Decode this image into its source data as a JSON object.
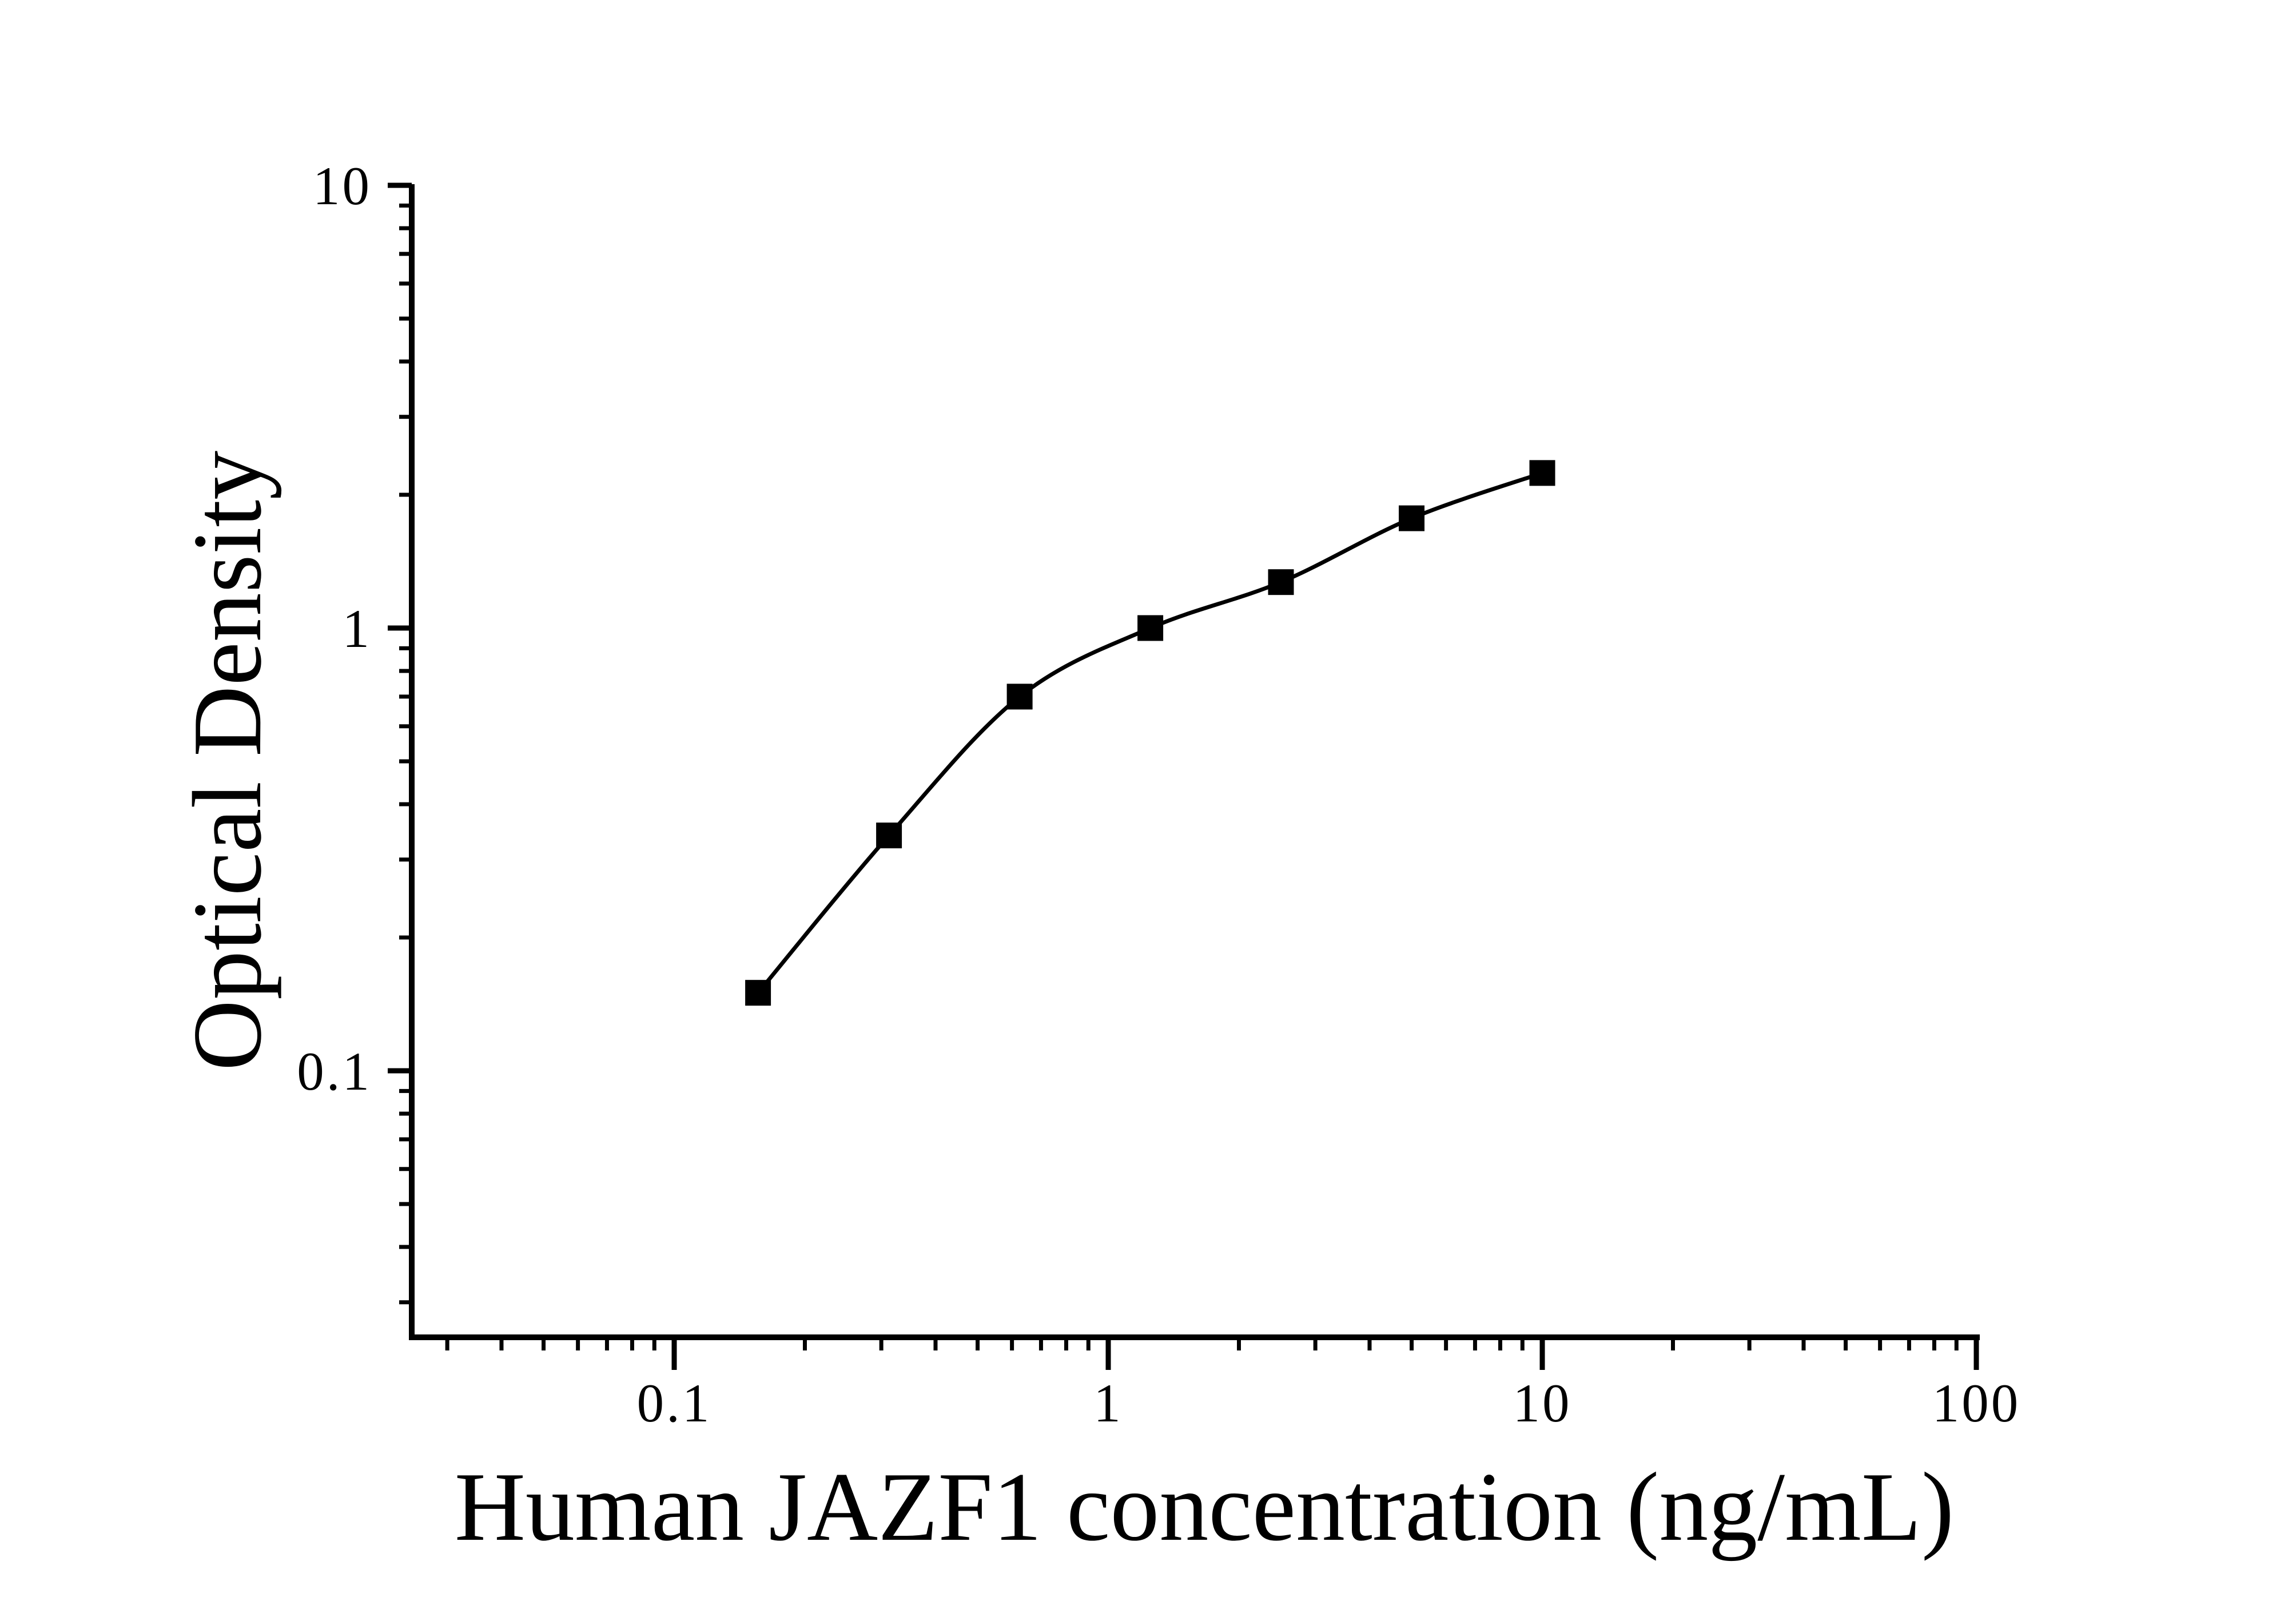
{
  "figure": {
    "background_color": "#ffffff",
    "foreground_color": "#000000"
  },
  "chart_data": {
    "type": "scatter",
    "subtype": "elisa-standard-curve",
    "title": "",
    "xlabel": "Human JAZF1 concentration (ng/mL)",
    "ylabel": "Optical Density",
    "x_scale": "log",
    "y_scale": "log",
    "xlim": [
      0.025,
      100
    ],
    "ylim": [
      0.025,
      10
    ],
    "grid": false,
    "legend": false,
    "minor_ticks": true,
    "x_ticks": {
      "values": [
        0.1,
        1,
        10,
        100
      ],
      "labels": [
        "0.1",
        "1",
        "10",
        "100"
      ]
    },
    "y_ticks": {
      "values": [
        10,
        1,
        0.1
      ],
      "labels": [
        "10",
        "1",
        "0.1"
      ]
    },
    "series": [
      {
        "name": "standard-curve",
        "marker": "filled-square",
        "marker_color": "#000000",
        "line_color": "#000000",
        "line_style": "smooth-fit",
        "points": [
          {
            "x": 0.156,
            "y": 0.15
          },
          {
            "x": 0.3125,
            "y": 0.34
          },
          {
            "x": 0.625,
            "y": 0.7
          },
          {
            "x": 1.25,
            "y": 1.0
          },
          {
            "x": 2.5,
            "y": 1.27
          },
          {
            "x": 5,
            "y": 1.77
          },
          {
            "x": 10,
            "y": 2.24
          }
        ]
      }
    ]
  }
}
